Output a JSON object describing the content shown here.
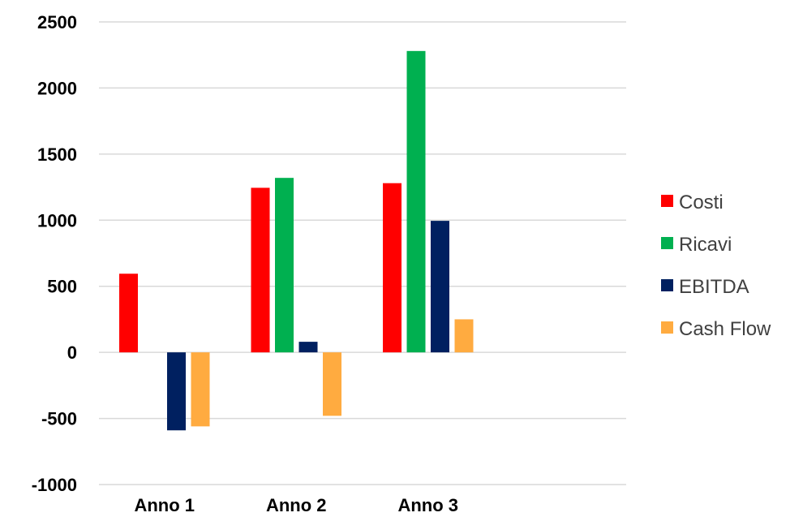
{
  "chart_data": {
    "type": "bar",
    "categories": [
      "Anno 1",
      "Anno 2",
      "Anno 3",
      ""
    ],
    "series": [
      {
        "name": "Costi",
        "color": "#ff0000",
        "values": [
          595,
          1245,
          1280,
          null
        ]
      },
      {
        "name": "Ricavi",
        "color": "#00b050",
        "values": [
          0,
          1320,
          2280,
          null
        ]
      },
      {
        "name": "EBITDA",
        "color": "#002060",
        "values": [
          -590,
          80,
          995,
          null
        ]
      },
      {
        "name": "Cash Flow",
        "color": "#ffab40",
        "values": [
          -560,
          -480,
          250,
          null
        ]
      }
    ],
    "ylim": [
      -1000,
      2500
    ],
    "yticks": [
      -1000,
      -500,
      0,
      500,
      1000,
      1500,
      2000,
      2500
    ],
    "grid": true,
    "legend_position": "right",
    "title": "",
    "xlabel": "",
    "ylabel": ""
  }
}
